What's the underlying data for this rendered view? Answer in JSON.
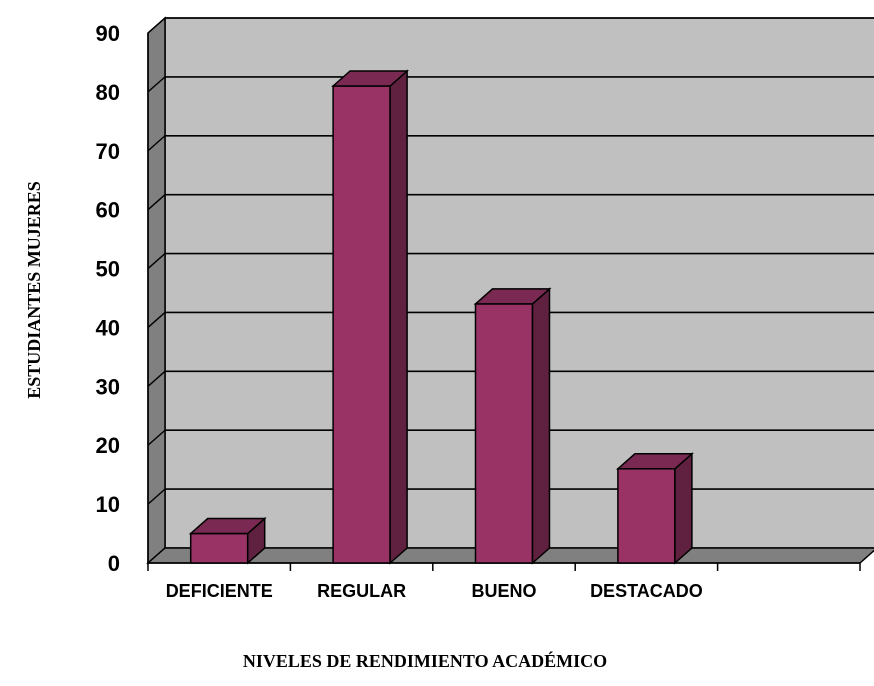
{
  "chart_data": {
    "type": "bar",
    "categories": [
      "DEFICIENTE",
      "REGULAR",
      "BUENO",
      "DESTACADO"
    ],
    "values": [
      5,
      81,
      44,
      16
    ],
    "xlabel": "NIVELES   DE  RENDIMIENTO  ACADÉMICO",
    "ylabel": "ESTUDIANTES   MUJERES",
    "ylim": [
      0,
      90
    ],
    "yticks": [
      0,
      10,
      20,
      30,
      40,
      50,
      60,
      70,
      80,
      90
    ],
    "grid": true,
    "legend": "none",
    "style": "3d-column",
    "colors": {
      "bar_front": "#993366",
      "bar_side": "#602040",
      "bar_top": "#7a2a52",
      "plot_back": "#c0c0c0",
      "left_wall": "#808080",
      "floor": "#808080"
    }
  }
}
